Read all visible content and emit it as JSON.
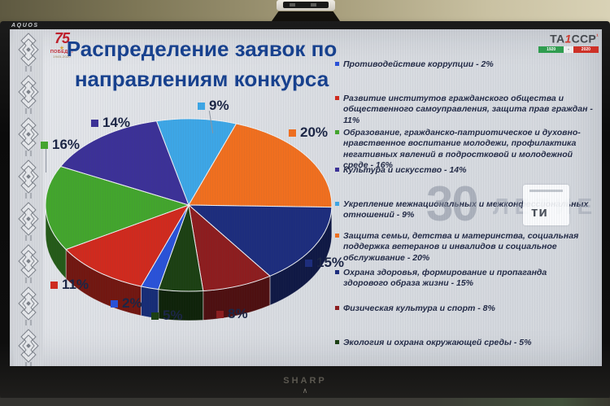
{
  "tv": {
    "brand_top": "AQUOS",
    "brand_bottom": "SHARP",
    "chevron": "∧"
  },
  "slide": {
    "title": {
      "line1": "Распределение заявок по",
      "line2": "направлениям конкурса"
    },
    "logo_pobeda": {
      "number": "75",
      "star": "★",
      "word": "ПОБЕДА!",
      "years": "1945-2020"
    },
    "logo_tassr": {
      "prefix": "ТА",
      "slash": "1",
      "suffix": "ССР",
      "tick": "¹",
      "years_left": "1920",
      "years_sep": "-",
      "years_right": "2020"
    },
    "watermark": {
      "big": "30",
      "word": "ЛЕТИЕ",
      "box_letters": "ти"
    }
  },
  "chart_data": {
    "type": "pie",
    "effect": "3d",
    "title": "Распределение заявок по направлениям конкурса",
    "legend_position": "right",
    "start_angle_deg": -13,
    "unit": "%",
    "slices": [
      {
        "label": "Укрепление межнациональных и межконфессиональных отношений",
        "value": 9,
        "color": "#3da6e6"
      },
      {
        "label": "Защита семьи, детства и материнства, социальная поддержка ветеранов и инвалидов и социальное обслуживание",
        "value": 20,
        "color": "#f06f1f"
      },
      {
        "label": "Охрана здоровья, формирование и пропаганда здорового образа жизни",
        "value": 15,
        "color": "#1d2d7d"
      },
      {
        "label": "Физическая культура и спорт",
        "value": 8,
        "color": "#8d1d1f"
      },
      {
        "label": "Экология и охрана окружающей среды",
        "value": 5,
        "color": "#1c4013"
      },
      {
        "label": "Противодействие коррупции",
        "value": 2,
        "color": "#2a52d8"
      },
      {
        "label": "Развитие институтов гражданского общества и общественного самоуправления, защита прав граждан",
        "value": 11,
        "color": "#d02a1e"
      },
      {
        "label": "Образование, гражданско-патриотическое и духовно-нравственное воспитание молодежи, профилактика негативных явлений в подростковой и молодежной среде",
        "value": 16,
        "color": "#43a52d"
      },
      {
        "label": "Культура и искусство",
        "value": 14,
        "color": "#3c3197"
      }
    ]
  },
  "legend": {
    "items": [
      {
        "text": "Противодействие коррупции - 2%",
        "color": "#2a52d8"
      },
      {
        "text": "Развитие институтов гражданского общества и общественного самоуправления, защита прав граждан - 11%",
        "color": "#d02a1e"
      },
      {
        "text": "Образование, гражданско-патриотическое и духовно-нравственное воспитание молодежи, профилактика негативных явлений в подростковой и молодежной среде - 16%",
        "color": "#43a52d"
      },
      {
        "text": "Культура и искусство - 14%",
        "color": "#3c3197"
      },
      {
        "text": "Укрепление межнациональных и межконфессиональных отношений - 9%",
        "color": "#3da6e6"
      },
      {
        "text": "Защита семьи, детства и материнства, социальная поддержка ветеранов и инвалидов и социальное обслуживание - 20%",
        "color": "#f06f1f"
      },
      {
        "text": "Охрана здоровья, формирование и пропаганда здорового образа жизни - 15%",
        "color": "#1d2d7d"
      },
      {
        "text": "Физическая культура и спорт - 8%",
        "color": "#8d1d1f"
      },
      {
        "text": "Экология и охрана окружающей среды - 5%",
        "color": "#1c4013"
      }
    ]
  }
}
